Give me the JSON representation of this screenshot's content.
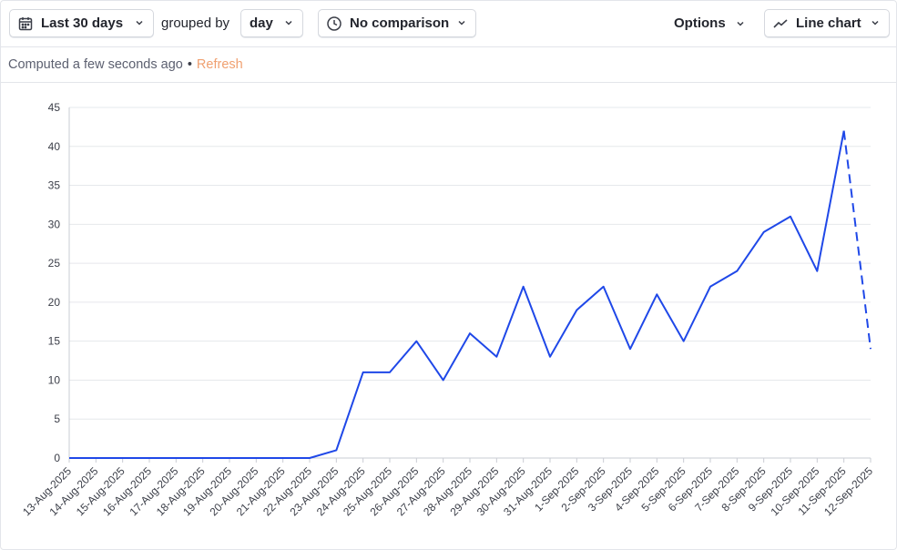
{
  "toolbar": {
    "date_range": {
      "label": "Last 30 days",
      "icon": "calendar-icon"
    },
    "grouped_by_label": "grouped by",
    "interval": {
      "label": "day"
    },
    "comparison": {
      "label": "No comparison",
      "icon": "clock-icon"
    },
    "options_label": "Options",
    "chart_type": {
      "label": "Line chart",
      "icon": "line-chart-icon"
    }
  },
  "status": {
    "computed_text": "Computed a few seconds ago",
    "separator": "•",
    "refresh_label": "Refresh"
  },
  "colors": {
    "series": "#1f48e8",
    "grid": "#e6e8ec",
    "refresh": "#f0a070"
  },
  "chart_data": {
    "type": "line",
    "x": [
      "13-Aug-2025",
      "14-Aug-2025",
      "15-Aug-2025",
      "16-Aug-2025",
      "17-Aug-2025",
      "18-Aug-2025",
      "19-Aug-2025",
      "20-Aug-2025",
      "21-Aug-2025",
      "22-Aug-2025",
      "23-Aug-2025",
      "24-Aug-2025",
      "25-Aug-2025",
      "26-Aug-2025",
      "27-Aug-2025",
      "28-Aug-2025",
      "29-Aug-2025",
      "30-Aug-2025",
      "31-Aug-2025",
      "1-Sep-2025",
      "2-Sep-2025",
      "3-Sep-2025",
      "4-Sep-2025",
      "5-Sep-2025",
      "6-Sep-2025",
      "7-Sep-2025",
      "8-Sep-2025",
      "9-Sep-2025",
      "10-Sep-2025",
      "11-Sep-2025",
      "12-Sep-2025"
    ],
    "series": [
      {
        "values": [
          0,
          0,
          0,
          0,
          0,
          0,
          0,
          0,
          0,
          0,
          1,
          11,
          11,
          15,
          10,
          16,
          13,
          22,
          13,
          19,
          22,
          14,
          21,
          15,
          22,
          24,
          29,
          31,
          24,
          42,
          14
        ]
      }
    ],
    "incomplete_last_segment": true,
    "ylim": [
      0,
      45
    ],
    "yticks": [
      0,
      5,
      10,
      15,
      20,
      25,
      30,
      35,
      40,
      45
    ],
    "grid": true,
    "legend": false
  }
}
